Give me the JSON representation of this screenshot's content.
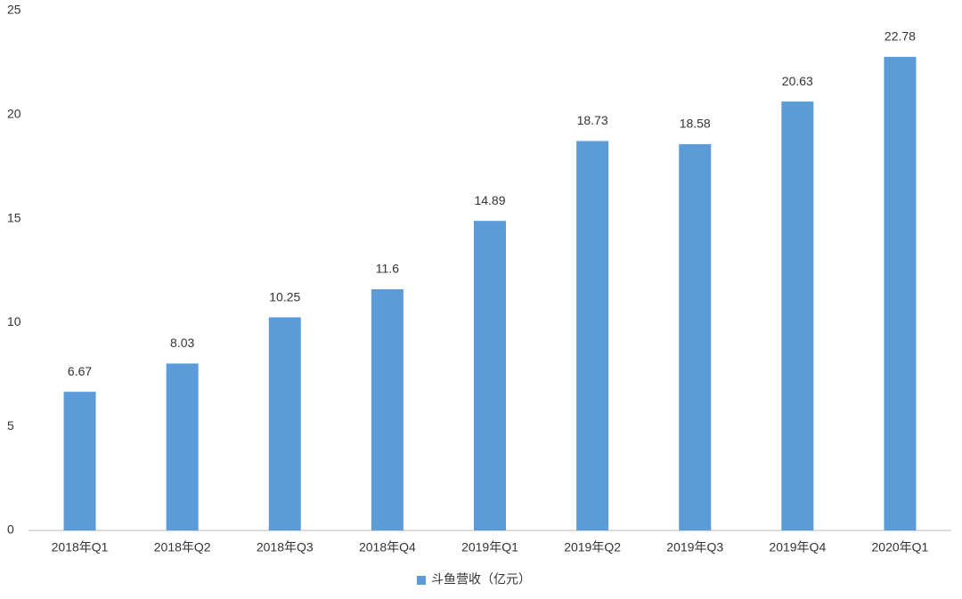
{
  "chart_data": {
    "type": "bar",
    "categories": [
      "2018年Q1",
      "2018年Q2",
      "2018年Q3",
      "2018年Q4",
      "2019年Q1",
      "2019年Q2",
      "2019年Q3",
      "2019年Q4",
      "2020年Q1"
    ],
    "series": [
      {
        "name": "斗鱼营收（亿元）",
        "color": "#5a9bd8",
        "values": [
          6.67,
          8.03,
          10.25,
          11.6,
          14.89,
          18.73,
          18.58,
          20.63,
          22.78
        ]
      }
    ],
    "ylim": [
      0,
      25
    ],
    "yticks": [
      0,
      5,
      10,
      15,
      20,
      25
    ],
    "grid": false,
    "legend": "bottom"
  }
}
